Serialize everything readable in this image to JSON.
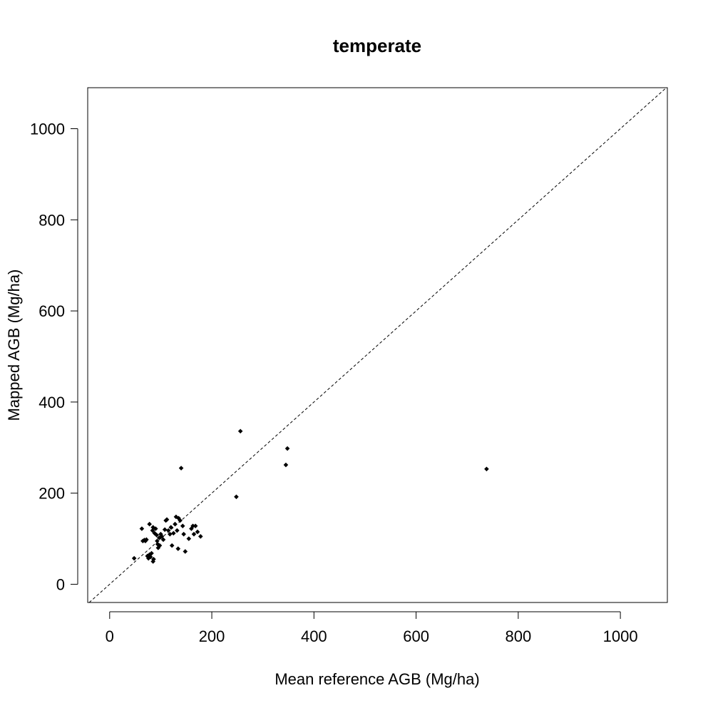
{
  "chart_data": {
    "type": "scatter",
    "title": "temperate",
    "xlabel": "Mean reference AGB (Mg/ha)",
    "ylabel": "Mapped AGB (Mg/ha)",
    "xlim": [
      -43,
      1092
    ],
    "ylim": [
      -40,
      1090
    ],
    "xticks": [
      0,
      200,
      400,
      600,
      800,
      1000
    ],
    "yticks": [
      0,
      200,
      400,
      600,
      800,
      1000
    ],
    "xtick_labels": [
      "0",
      "200",
      "400",
      "600",
      "800",
      "1000"
    ],
    "ytick_labels": [
      "0",
      "200",
      "400",
      "600",
      "800",
      "1000"
    ],
    "reference_line": "1:1 dashed",
    "grid": false,
    "legend": "none",
    "series": [
      {
        "points": [
          [
            48,
            57
          ],
          [
            63,
            122
          ],
          [
            65,
            95
          ],
          [
            68,
            97
          ],
          [
            70,
            95
          ],
          [
            72,
            98
          ],
          [
            74,
            62
          ],
          [
            76,
            57
          ],
          [
            78,
            65
          ],
          [
            78,
            132
          ],
          [
            80,
            60
          ],
          [
            82,
            68
          ],
          [
            84,
            118
          ],
          [
            85,
            125
          ],
          [
            85,
            50
          ],
          [
            86,
            55
          ],
          [
            88,
            112
          ],
          [
            90,
            122
          ],
          [
            92,
            108
          ],
          [
            93,
            95
          ],
          [
            94,
            88
          ],
          [
            95,
            80
          ],
          [
            97,
            102
          ],
          [
            98,
            85
          ],
          [
            100,
            110
          ],
          [
            102,
            105
          ],
          [
            105,
            98
          ],
          [
            108,
            120
          ],
          [
            110,
            140
          ],
          [
            112,
            142
          ],
          [
            115,
            118
          ],
          [
            118,
            110
          ],
          [
            120,
            125
          ],
          [
            122,
            85
          ],
          [
            125,
            112
          ],
          [
            128,
            132
          ],
          [
            130,
            148
          ],
          [
            132,
            118
          ],
          [
            134,
            78
          ],
          [
            135,
            145
          ],
          [
            138,
            140
          ],
          [
            140,
            255
          ],
          [
            143,
            128
          ],
          [
            145,
            110
          ],
          [
            148,
            72
          ],
          [
            155,
            100
          ],
          [
            160,
            122
          ],
          [
            163,
            128
          ],
          [
            165,
            110
          ],
          [
            168,
            128
          ],
          [
            172,
            115
          ],
          [
            178,
            105
          ],
          [
            248,
            192
          ],
          [
            256,
            336
          ],
          [
            345,
            262
          ],
          [
            348,
            298
          ],
          [
            738,
            253
          ]
        ]
      }
    ]
  }
}
